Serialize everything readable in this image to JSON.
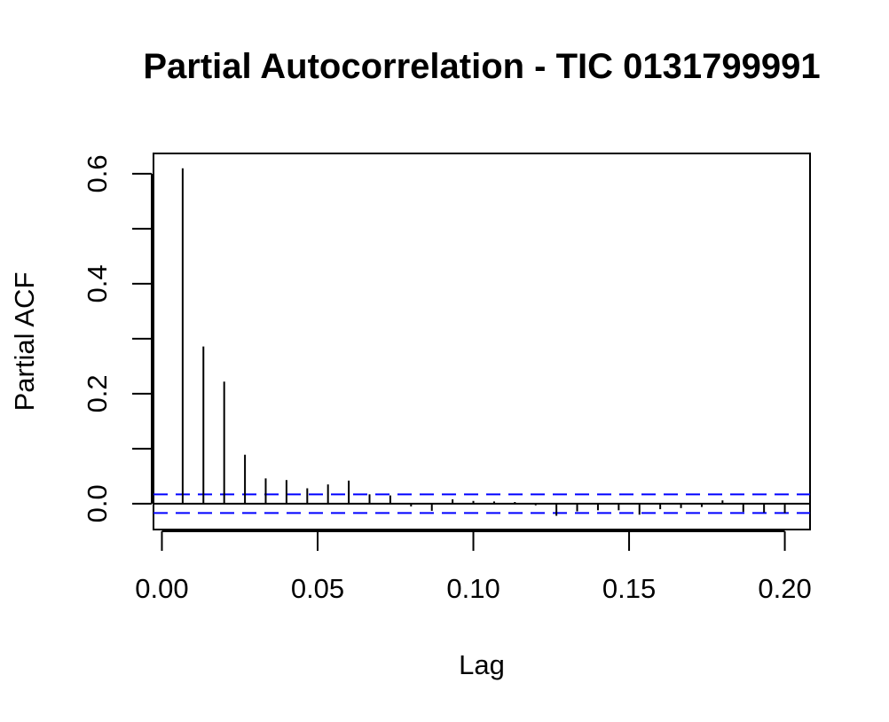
{
  "chart_data": {
    "type": "bar",
    "title": "Partial Autocorrelation - TIC 0131799991",
    "xlabel": "Lag",
    "ylabel": "Partial ACF",
    "xlim": [
      -0.0027,
      0.2081
    ],
    "ylim": [
      -0.047,
      0.637
    ],
    "x_ticks": [
      "0.00",
      "0.05",
      "0.10",
      "0.15",
      "0.20"
    ],
    "x_tick_values": [
      0.0,
      0.05,
      0.1,
      0.15,
      0.2
    ],
    "y_ticks": [
      "0.0",
      "0.2",
      "0.4",
      "0.6"
    ],
    "y_tick_values": [
      0.0,
      0.2,
      0.4,
      0.6
    ],
    "y_minor_ticks": [
      0.1,
      0.3,
      0.5
    ],
    "confidence_interval": 0.017,
    "zero_line": 0.0,
    "ci_color": "#0000FF",
    "series": [
      {
        "lags": [
          0.00667,
          0.01333,
          0.02,
          0.02667,
          0.03333,
          0.04,
          0.04667,
          0.05333,
          0.06,
          0.06667,
          0.07333,
          0.08,
          0.08667,
          0.09333,
          0.1,
          0.10667,
          0.11333,
          0.12,
          0.12667,
          0.13333,
          0.14,
          0.14667,
          0.15333,
          0.16,
          0.16667,
          0.17333,
          0.18,
          0.18667,
          0.19333,
          0.2
        ],
        "values": [
          0.61,
          0.286,
          0.222,
          0.089,
          0.046,
          0.043,
          0.028,
          0.035,
          0.042,
          0.017,
          0.015,
          -0.005,
          -0.013,
          0.008,
          0.005,
          0.004,
          0.003,
          -0.003,
          -0.022,
          -0.014,
          -0.012,
          -0.012,
          -0.02,
          -0.01,
          -0.008,
          -0.006,
          0.006,
          -0.015,
          -0.016,
          -0.017
        ]
      }
    ]
  }
}
